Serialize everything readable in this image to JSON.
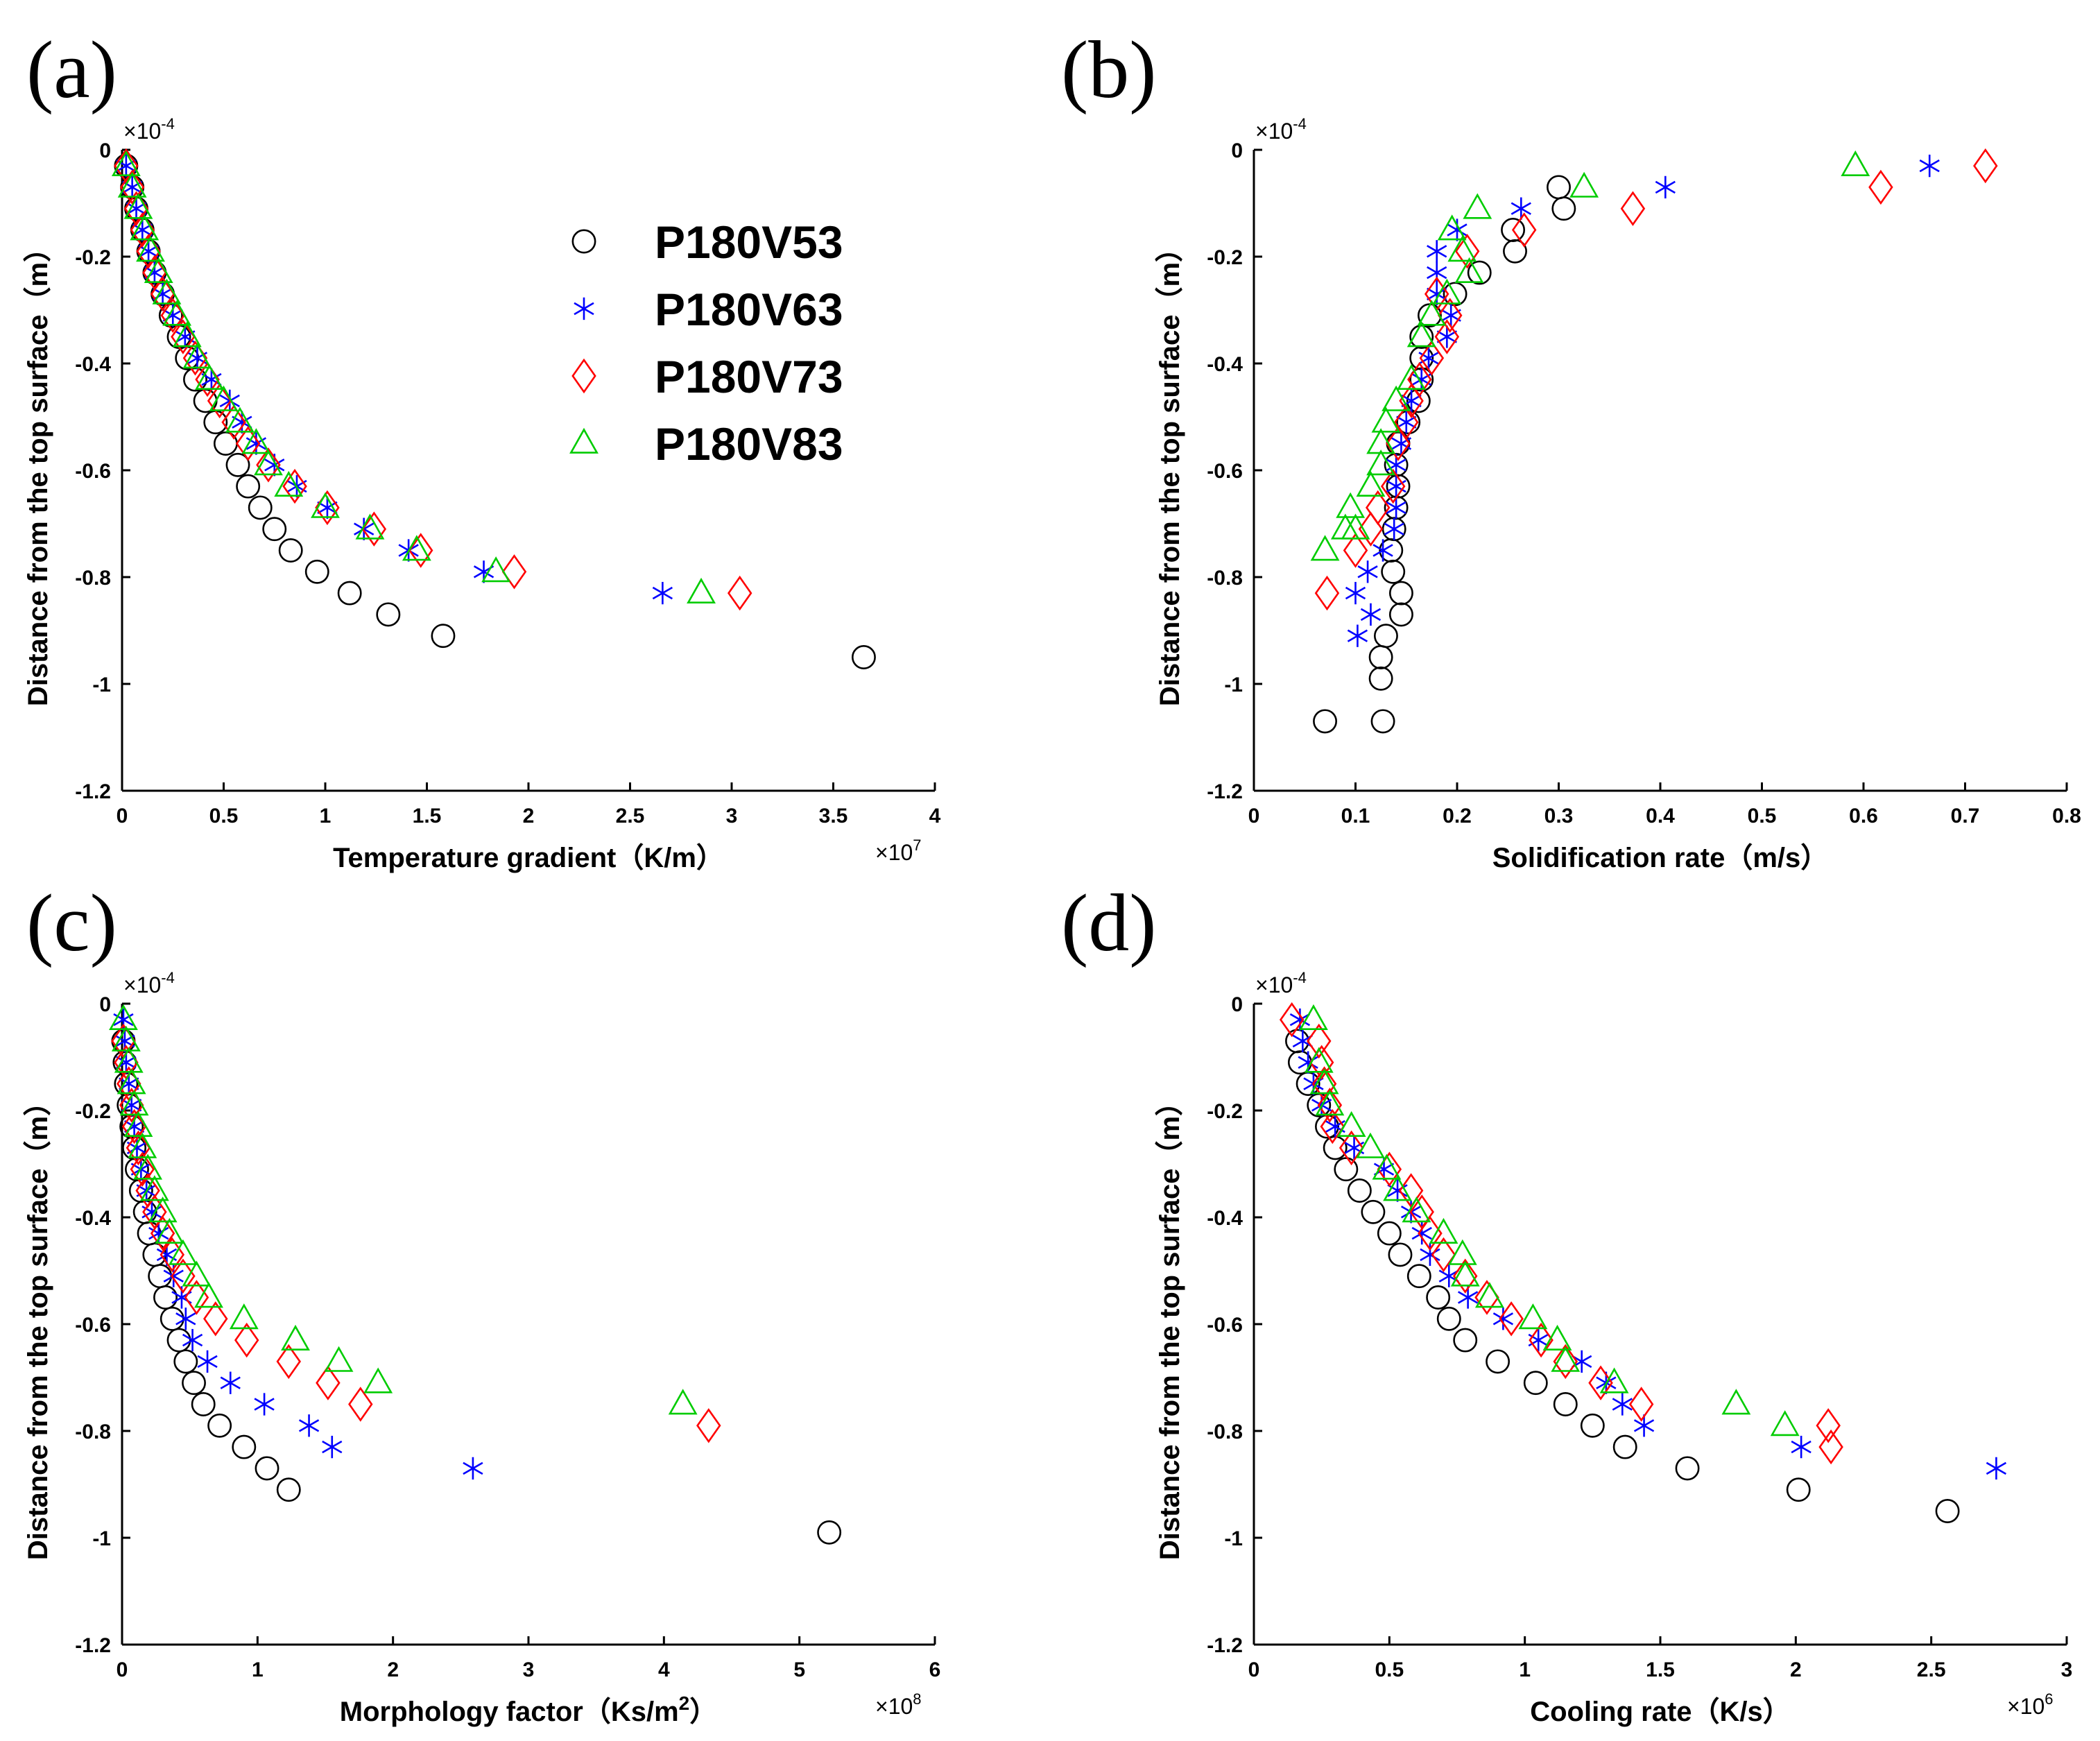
{
  "chart_data": [
    {
      "panel": "(a)",
      "type": "scatter",
      "xlabel": "Temperature gradient（K/m）",
      "ylabel": "Distance from the top surface（m）",
      "x_exponent": "×10",
      "x_exponent_power": "7",
      "y_exponent": "×10",
      "y_exponent_power": "-4",
      "xlim": [
        0,
        4
      ],
      "ylim": [
        -1.2,
        0
      ],
      "xticks": [
        "0",
        "0.5",
        "1",
        "1.5",
        "2",
        "2.5",
        "3",
        "3.5",
        "4"
      ],
      "yticks": [
        "0",
        "-0.2",
        "-0.4",
        "-0.6",
        "-0.8",
        "-1",
        "-1.2"
      ],
      "legend": {
        "placement": "top-right",
        "entries": [
          "P180V53",
          "P180V63",
          "P180V73",
          "P180V83"
        ]
      },
      "series": [
        {
          "name": "P180V53",
          "marker": "circle",
          "color": "#000000",
          "x": [
            0.02,
            0.05,
            0.07,
            0.1,
            0.13,
            0.16,
            0.2,
            0.24,
            0.28,
            0.32,
            0.36,
            0.41,
            0.46,
            0.51,
            0.57,
            0.62,
            0.68,
            0.75,
            0.83,
            0.96,
            1.12,
            1.31,
            1.58,
            3.65
          ],
          "y": [
            -0.03,
            -0.07,
            -0.11,
            -0.15,
            -0.19,
            -0.23,
            -0.27,
            -0.31,
            -0.35,
            -0.39,
            -0.43,
            -0.47,
            -0.51,
            -0.55,
            -0.59,
            -0.63,
            -0.67,
            -0.71,
            -0.75,
            -0.79,
            -0.83,
            -0.87,
            -0.91,
            -0.95
          ]
        },
        {
          "name": "P180V63",
          "marker": "asterisk",
          "color": "#0000ff",
          "x": [
            0.02,
            0.05,
            0.07,
            0.1,
            0.13,
            0.16,
            0.2,
            0.25,
            0.31,
            0.37,
            0.44,
            0.53,
            0.59,
            0.66,
            0.75,
            0.86,
            1.01,
            1.19,
            1.41,
            1.78,
            2.66
          ],
          "y": [
            -0.03,
            -0.07,
            -0.11,
            -0.15,
            -0.19,
            -0.23,
            -0.27,
            -0.31,
            -0.35,
            -0.39,
            -0.43,
            -0.47,
            -0.51,
            -0.55,
            -0.59,
            -0.63,
            -0.67,
            -0.71,
            -0.75,
            -0.79,
            -0.83
          ]
        },
        {
          "name": "P180V73",
          "marker": "diamond",
          "color": "#ff0000",
          "x": [
            0.02,
            0.05,
            0.07,
            0.1,
            0.13,
            0.16,
            0.2,
            0.25,
            0.3,
            0.36,
            0.42,
            0.48,
            0.55,
            0.62,
            0.72,
            0.85,
            1.01,
            1.24,
            1.47,
            1.93,
            3.04
          ],
          "y": [
            -0.03,
            -0.07,
            -0.11,
            -0.15,
            -0.19,
            -0.23,
            -0.27,
            -0.31,
            -0.35,
            -0.39,
            -0.43,
            -0.47,
            -0.51,
            -0.55,
            -0.59,
            -0.63,
            -0.67,
            -0.71,
            -0.75,
            -0.79,
            -0.83
          ]
        },
        {
          "name": "P180V83",
          "marker": "triangle",
          "color": "#00cc00",
          "x": [
            0.02,
            0.05,
            0.08,
            0.11,
            0.14,
            0.18,
            0.22,
            0.27,
            0.32,
            0.37,
            0.43,
            0.5,
            0.58,
            0.66,
            0.72,
            0.82,
            1.0,
            1.22,
            1.45,
            1.84,
            2.85
          ],
          "y": [
            -0.03,
            -0.07,
            -0.11,
            -0.15,
            -0.19,
            -0.23,
            -0.27,
            -0.31,
            -0.35,
            -0.39,
            -0.43,
            -0.47,
            -0.51,
            -0.55,
            -0.59,
            -0.63,
            -0.67,
            -0.71,
            -0.75,
            -0.79,
            -0.83
          ]
        }
      ]
    },
    {
      "panel": "(b)",
      "type": "scatter",
      "xlabel": "Solidification rate（m/s）",
      "ylabel": "Distance from the top surface（m）",
      "x_exponent": "",
      "x_exponent_power": "",
      "y_exponent": "×10",
      "y_exponent_power": "-4",
      "xlim": [
        0,
        0.8
      ],
      "ylim": [
        -1.2,
        0
      ],
      "xticks": [
        "0",
        "0.1",
        "0.2",
        "0.3",
        "0.4",
        "0.5",
        "0.6",
        "0.7",
        "0.8"
      ],
      "yticks": [
        "0",
        "-0.2",
        "-0.4",
        "-0.6",
        "-0.8",
        "-1",
        "-1.2"
      ],
      "series": [
        {
          "name": "P180V53",
          "marker": "circle",
          "color": "#000000",
          "x": [
            0.3,
            0.305,
            0.255,
            0.257,
            0.222,
            0.198,
            0.173,
            0.165,
            0.165,
            0.165,
            0.162,
            0.152,
            0.142,
            0.14,
            0.142,
            0.14,
            0.138,
            0.135,
            0.137,
            0.145,
            0.145,
            0.13,
            0.125,
            0.125,
            0.127,
            0.07
          ],
          "y": [
            -0.07,
            -0.11,
            -0.15,
            -0.19,
            -0.23,
            -0.27,
            -0.31,
            -0.35,
            -0.39,
            -0.43,
            -0.47,
            -0.51,
            -0.55,
            -0.59,
            -0.63,
            -0.67,
            -0.71,
            -0.75,
            -0.79,
            -0.83,
            -0.87,
            -0.91,
            -0.95,
            -0.99,
            -1.07,
            -1.07
          ]
        },
        {
          "name": "P180V63",
          "marker": "asterisk",
          "color": "#0000ff",
          "x": [
            0.665,
            0.405,
            0.263,
            0.2,
            0.18,
            0.18,
            0.18,
            0.194,
            0.19,
            0.172,
            0.165,
            0.155,
            0.15,
            0.145,
            0.14,
            0.14,
            0.14,
            0.138,
            0.127,
            0.112,
            0.1,
            0.115,
            0.102
          ],
          "y": [
            -0.03,
            -0.07,
            -0.11,
            -0.15,
            -0.19,
            -0.23,
            -0.27,
            -0.31,
            -0.35,
            -0.39,
            -0.43,
            -0.47,
            -0.51,
            -0.55,
            -0.59,
            -0.63,
            -0.67,
            -0.71,
            -0.75,
            -0.79,
            -0.83,
            -0.87,
            -0.91
          ]
        },
        {
          "name": "P180V73",
          "marker": "diamond",
          "color": "#ff0000",
          "x": [
            0.72,
            0.617,
            0.373,
            0.266,
            0.21,
            0.18,
            0.193,
            0.19,
            0.175,
            0.163,
            0.155,
            0.15,
            0.142,
            0.137,
            0.122,
            0.115,
            0.1,
            0.072
          ],
          "y": [
            -0.03,
            -0.07,
            -0.11,
            -0.15,
            -0.19,
            -0.27,
            -0.31,
            -0.35,
            -0.39,
            -0.43,
            -0.47,
            -0.51,
            -0.55,
            -0.63,
            -0.67,
            -0.71,
            -0.75,
            -0.83
          ]
        },
        {
          "name": "P180V83",
          "marker": "triangle",
          "color": "#00cc00",
          "x": [
            0.592,
            0.325,
            0.22,
            0.195,
            0.205,
            0.212,
            0.19,
            0.175,
            0.165,
            0.155,
            0.14,
            0.13,
            0.125,
            0.125,
            0.115,
            0.095,
            0.09,
            0.1,
            0.07
          ],
          "y": [
            -0.03,
            -0.07,
            -0.11,
            -0.15,
            -0.19,
            -0.23,
            -0.27,
            -0.31,
            -0.35,
            -0.43,
            -0.47,
            -0.51,
            -0.55,
            -0.59,
            -0.63,
            -0.67,
            -0.71,
            -0.71,
            -0.75
          ]
        }
      ]
    },
    {
      "panel": "(c)",
      "type": "scatter",
      "xlabel": "Morphology factor（Ks/m",
      "xlabel_sup": "2",
      "xlabel_end": "）",
      "ylabel": "Distance from the top surface（m）",
      "x_exponent": "×10",
      "x_exponent_power": "8",
      "y_exponent": "×10",
      "y_exponent_power": "-4",
      "xlim": [
        0,
        6
      ],
      "ylim": [
        -1.2,
        0
      ],
      "xticks": [
        "0",
        "1",
        "2",
        "3",
        "4",
        "5",
        "6"
      ],
      "yticks": [
        "0",
        "-0.2",
        "-0.4",
        "-0.6",
        "-0.8",
        "-1",
        "-1.2"
      ],
      "series": [
        {
          "name": "P180V53",
          "marker": "circle",
          "color": "#000000",
          "x": [
            0.01,
            0.02,
            0.03,
            0.05,
            0.07,
            0.09,
            0.11,
            0.14,
            0.17,
            0.2,
            0.24,
            0.28,
            0.32,
            0.37,
            0.42,
            0.47,
            0.53,
            0.6,
            0.72,
            0.9,
            1.07,
            1.23,
            5.22
          ],
          "y": [
            -0.07,
            -0.11,
            -0.15,
            -0.19,
            -0.23,
            -0.27,
            -0.31,
            -0.35,
            -0.39,
            -0.43,
            -0.47,
            -0.51,
            -0.55,
            -0.59,
            -0.63,
            -0.67,
            -0.71,
            -0.75,
            -0.79,
            -0.83,
            -0.87,
            -0.91,
            -0.99
          ]
        },
        {
          "name": "P180V63",
          "marker": "asterisk",
          "color": "#0000ff",
          "x": [
            0.01,
            0.02,
            0.03,
            0.05,
            0.07,
            0.09,
            0.11,
            0.14,
            0.18,
            0.22,
            0.27,
            0.33,
            0.38,
            0.44,
            0.47,
            0.52,
            0.63,
            0.8,
            1.05,
            1.38,
            1.55,
            2.59
          ],
          "y": [
            -0.03,
            -0.07,
            -0.11,
            -0.15,
            -0.19,
            -0.23,
            -0.27,
            -0.31,
            -0.35,
            -0.39,
            -0.43,
            -0.47,
            -0.51,
            -0.55,
            -0.59,
            -0.63,
            -0.67,
            -0.71,
            -0.75,
            -0.79,
            -0.83,
            -0.87
          ]
        },
        {
          "name": "P180V73",
          "marker": "diamond",
          "color": "#ff0000",
          "x": [
            0.01,
            0.03,
            0.05,
            0.07,
            0.09,
            0.12,
            0.15,
            0.19,
            0.24,
            0.3,
            0.37,
            0.45,
            0.55,
            0.69,
            0.92,
            1.23,
            1.52,
            1.76,
            4.33
          ],
          "y": [
            -0.07,
            -0.11,
            -0.15,
            -0.19,
            -0.23,
            -0.27,
            -0.31,
            -0.35,
            -0.39,
            -0.43,
            -0.47,
            -0.51,
            -0.55,
            -0.59,
            -0.63,
            -0.67,
            -0.71,
            -0.75,
            -0.79
          ]
        },
        {
          "name": "P180V83",
          "marker": "triangle",
          "color": "#00cc00",
          "x": [
            0.01,
            0.03,
            0.05,
            0.07,
            0.09,
            0.12,
            0.15,
            0.19,
            0.24,
            0.3,
            0.35,
            0.45,
            0.55,
            0.64,
            0.9,
            1.28,
            1.6,
            1.89,
            4.14
          ],
          "y": [
            -0.03,
            -0.07,
            -0.11,
            -0.15,
            -0.19,
            -0.23,
            -0.27,
            -0.31,
            -0.35,
            -0.39,
            -0.43,
            -0.47,
            -0.51,
            -0.55,
            -0.59,
            -0.63,
            -0.67,
            -0.71,
            -0.75
          ]
        }
      ]
    },
    {
      "panel": "(d)",
      "type": "scatter",
      "xlabel": "Cooling rate（K/s）",
      "ylabel": "Distance from the top surface（m）",
      "x_exponent": "×10",
      "x_exponent_power": "6",
      "y_exponent": "×10",
      "y_exponent_power": "-4",
      "xlim": [
        0,
        3
      ],
      "ylim": [
        -1.2,
        0
      ],
      "xticks": [
        "0",
        "0.5",
        "1",
        "1.5",
        "2",
        "2.5",
        "3"
      ],
      "yticks": [
        "0",
        "-0.2",
        "-0.4",
        "-0.6",
        "-0.8",
        "-1",
        "-1.2"
      ],
      "series": [
        {
          "name": "P180V53",
          "marker": "circle",
          "color": "#000000",
          "x": [
            0.16,
            0.17,
            0.2,
            0.24,
            0.27,
            0.3,
            0.34,
            0.39,
            0.44,
            0.5,
            0.54,
            0.61,
            0.68,
            0.72,
            0.78,
            0.9,
            1.04,
            1.15,
            1.25,
            1.37,
            1.6,
            2.01,
            2.56
          ],
          "y": [
            -0.07,
            -0.11,
            -0.15,
            -0.19,
            -0.23,
            -0.27,
            -0.31,
            -0.35,
            -0.39,
            -0.43,
            -0.47,
            -0.51,
            -0.55,
            -0.59,
            -0.63,
            -0.67,
            -0.71,
            -0.75,
            -0.79,
            -0.83,
            -0.87,
            -0.91,
            -0.95
          ]
        },
        {
          "name": "P180V63",
          "marker": "asterisk",
          "color": "#0000ff",
          "x": [
            0.17,
            0.18,
            0.2,
            0.22,
            0.25,
            0.3,
            0.37,
            0.48,
            0.53,
            0.58,
            0.62,
            0.65,
            0.72,
            0.79,
            0.92,
            1.05,
            1.21,
            1.3,
            1.36,
            1.44,
            2.02,
            2.74
          ],
          "y": [
            -0.03,
            -0.07,
            -0.11,
            -0.15,
            -0.19,
            -0.23,
            -0.27,
            -0.31,
            -0.35,
            -0.39,
            -0.43,
            -0.47,
            -0.51,
            -0.55,
            -0.59,
            -0.63,
            -0.67,
            -0.71,
            -0.75,
            -0.79,
            -0.83,
            -0.87
          ]
        },
        {
          "name": "P180V73",
          "marker": "diamond",
          "color": "#ff0000",
          "x": [
            0.14,
            0.24,
            0.25,
            0.26,
            0.28,
            0.29,
            0.36,
            0.5,
            0.58,
            0.62,
            0.65,
            0.7,
            0.78,
            0.86,
            0.95,
            1.06,
            1.15,
            1.28,
            1.43,
            2.12,
            2.13
          ],
          "y": [
            -0.03,
            -0.07,
            -0.11,
            -0.15,
            -0.19,
            -0.23,
            -0.27,
            -0.31,
            -0.35,
            -0.39,
            -0.43,
            -0.47,
            -0.51,
            -0.55,
            -0.59,
            -0.63,
            -0.67,
            -0.71,
            -0.75,
            -0.79,
            -0.83
          ]
        },
        {
          "name": "P180V83",
          "marker": "triangle",
          "color": "#00cc00",
          "x": [
            0.22,
            0.24,
            0.26,
            0.28,
            0.36,
            0.43,
            0.49,
            0.53,
            0.6,
            0.7,
            0.77,
            0.78,
            0.87,
            1.03,
            1.12,
            1.15,
            1.33,
            1.78,
            1.96
          ],
          "y": [
            -0.03,
            -0.11,
            -0.15,
            -0.19,
            -0.23,
            -0.27,
            -0.31,
            -0.35,
            -0.39,
            -0.43,
            -0.47,
            -0.51,
            -0.55,
            -0.59,
            -0.63,
            -0.67,
            -0.71,
            -0.75,
            -0.79
          ]
        }
      ]
    }
  ]
}
